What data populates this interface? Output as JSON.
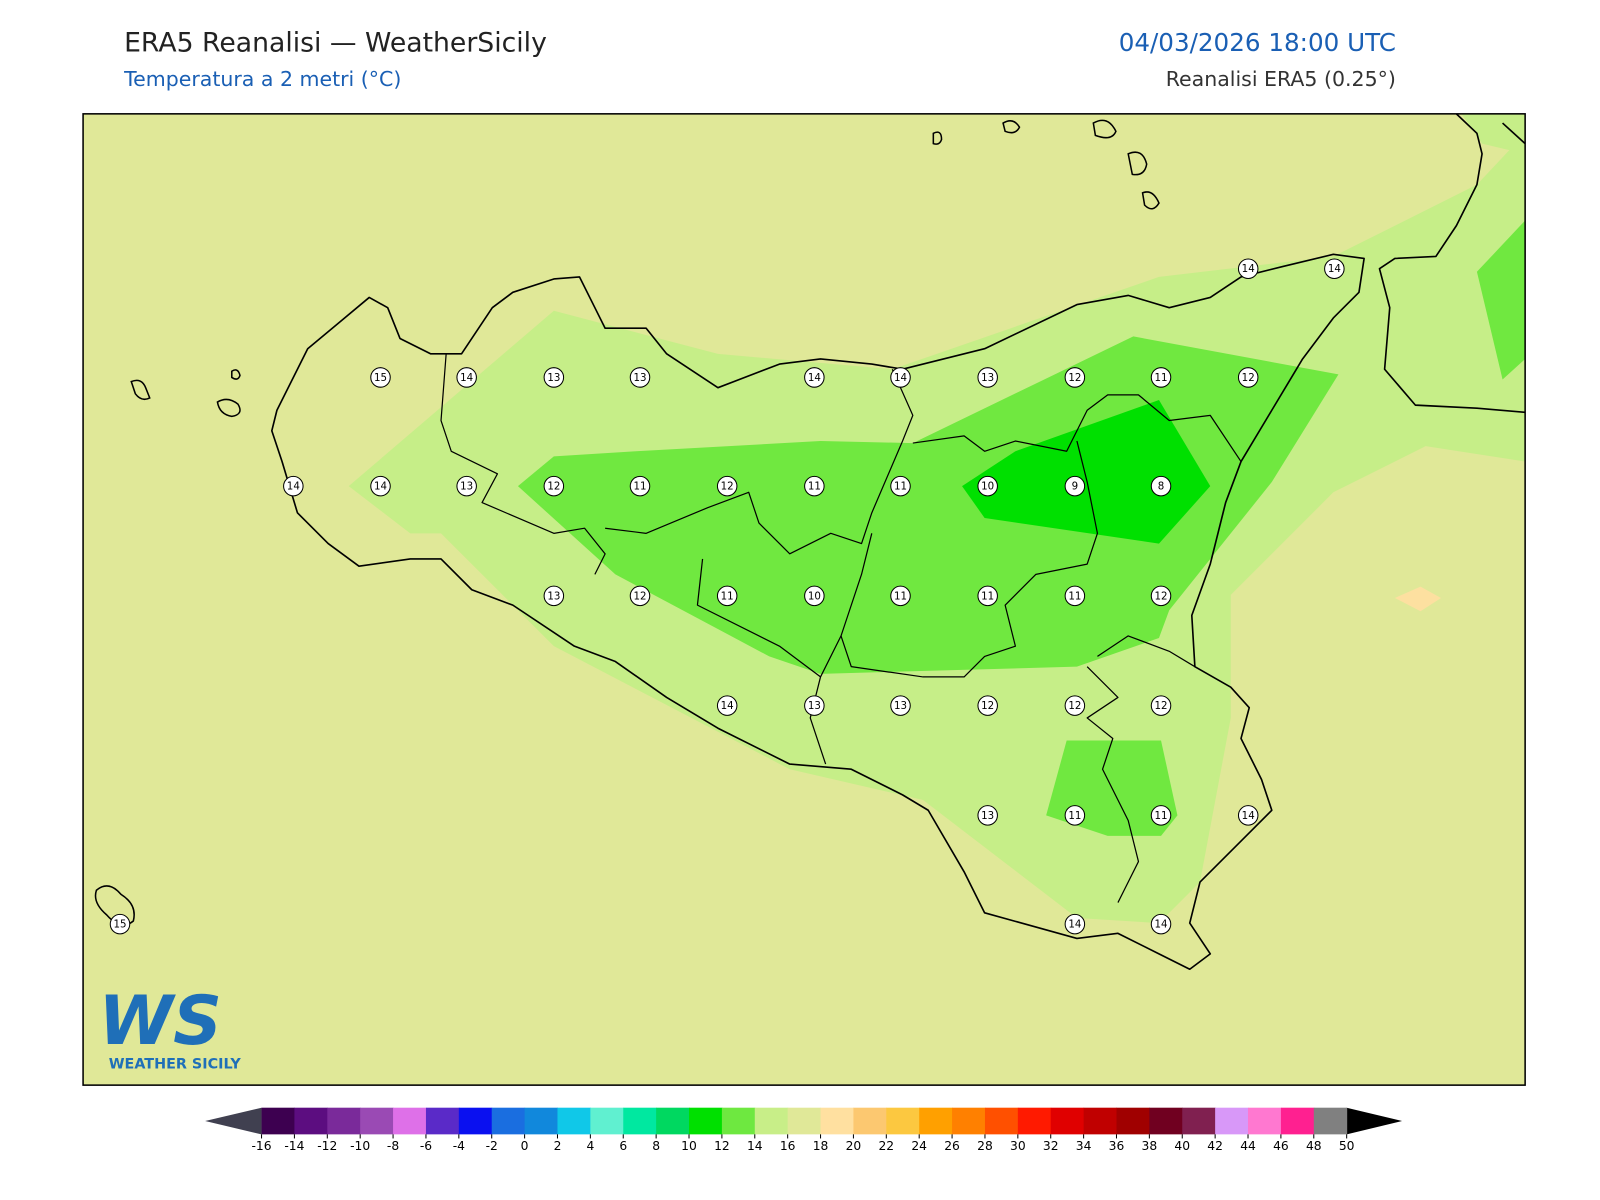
{
  "header": {
    "title": "ERA5 Reanalisi — WeatherSicily",
    "subtitle": "Temperatura a 2 metri (°C)",
    "datetime": "04/03/2026 18:00 UTC",
    "source": "Reanalisi ERA5 (0.25°)"
  },
  "stations": [
    15,
    14,
    13,
    13,
    14,
    14,
    13,
    12,
    11,
    12,
    14,
    14,
    14,
    14,
    13,
    12,
    11,
    12,
    11,
    11,
    10,
    9,
    8,
    13,
    12,
    11,
    10,
    11,
    11,
    11,
    12,
    14,
    13,
    13,
    12,
    12,
    12,
    13,
    11,
    11,
    14,
    15,
    14,
    14
  ],
  "colorbar": {
    "ticks": [
      -16,
      -14,
      -12,
      -10,
      -8,
      -6,
      -4,
      -2,
      0,
      2,
      4,
      6,
      8,
      10,
      12,
      14,
      16,
      18,
      20,
      22,
      24,
      26,
      28,
      30,
      32,
      34,
      36,
      38,
      40,
      42,
      44,
      46,
      48,
      50
    ],
    "colors": [
      "#3d0050",
      "#5c0d80",
      "#7a2a9a",
      "#9a4ab4",
      "#de70e8",
      "#5a2ac8",
      "#0a10f0",
      "#1a6ee0",
      "#1188dc",
      "#10c8e8",
      "#60f0d0",
      "#00e8a0",
      "#00d860",
      "#00e000",
      "#6ee840",
      "#c8ee88",
      "#e0e898",
      "#ffe0a0",
      "#fcc870",
      "#fcc840",
      "#ffa000",
      "#ff8000",
      "#ff5000",
      "#ff1a00",
      "#e00000",
      "#c00000",
      "#a00000",
      "#700020",
      "#802050",
      "#d898f8",
      "#ff78d0",
      "#ff2090",
      "#808080",
      "#3c3c3c"
    ],
    "under_color": "#404050",
    "over_color": "#000000"
  },
  "logo": {
    "mark": "WS",
    "text": "WEATHER SICILY"
  }
}
